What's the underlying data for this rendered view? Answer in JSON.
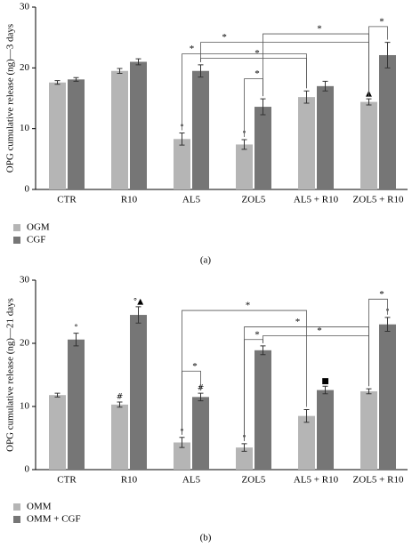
{
  "chart_data": [
    {
      "type": "bar",
      "y_label": "OPG cumulative release (ng)—3 days",
      "panel_label": "(a)",
      "categories": [
        "CTR",
        "R10",
        "AL5",
        "ZOL5",
        "AL5 + R10",
        "ZOL5 + R10"
      ],
      "series": [
        {
          "name": "OGM",
          "color": "#b5b5b5",
          "values": [
            17.6,
            19.5,
            8.3,
            7.4,
            15.2,
            14.4
          ],
          "errors": [
            0.3,
            0.4,
            1.0,
            0.8,
            1.0,
            0.5
          ],
          "markers": [
            null,
            null,
            "°",
            "°",
            null,
            "▲"
          ]
        },
        {
          "name": "CGF",
          "color": "#767676",
          "values": [
            18.1,
            21.0,
            19.5,
            13.6,
            17.0,
            22.1
          ],
          "errors": [
            0.3,
            0.5,
            1.0,
            1.3,
            0.8,
            2.1
          ],
          "markers": [
            null,
            null,
            null,
            null,
            null,
            null
          ]
        }
      ],
      "ylim": [
        0,
        30
      ],
      "yticks": [
        0,
        10,
        20,
        30
      ],
      "brackets": [
        "*",
        "*",
        "*",
        "*",
        "*",
        "*"
      ]
    },
    {
      "type": "bar",
      "y_label": "OPG cumulative release (ng)—21 days",
      "panel_label": "(b)",
      "categories": [
        "CTR",
        "R10",
        "AL5",
        "ZOL5",
        "AL5 + R10",
        "ZOL5 + R10"
      ],
      "series": [
        {
          "name": "OMM",
          "color": "#b5b5b5",
          "values": [
            11.8,
            10.3,
            4.3,
            3.5,
            8.5,
            12.4
          ],
          "errors": [
            0.3,
            0.4,
            0.8,
            0.6,
            1.0,
            0.4
          ],
          "markers": [
            null,
            "#",
            "°",
            "°",
            null,
            null
          ]
        },
        {
          "name": "OMM + CGF",
          "color": "#767676",
          "values": [
            20.6,
            24.5,
            11.5,
            18.9,
            12.6,
            23.0
          ],
          "errors": [
            1.0,
            1.3,
            0.6,
            0.7,
            0.6,
            1.1
          ],
          "markers": [
            "°",
            "°▲",
            "#",
            null,
            "■",
            "°"
          ]
        }
      ],
      "ylim": [
        0,
        30
      ],
      "yticks": [
        0,
        10,
        20,
        30
      ],
      "brackets": [
        "*",
        "*",
        "*",
        "*",
        "*",
        "*"
      ]
    }
  ]
}
